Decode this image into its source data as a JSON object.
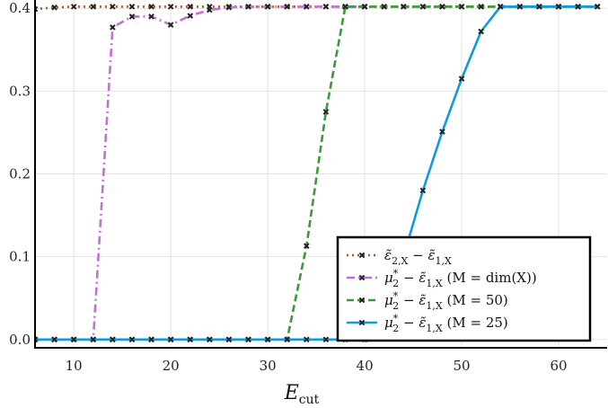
{
  "chart_data": {
    "type": "line",
    "title": "",
    "xlabel": "E",
    "xlabel_sub": "cut",
    "ylabel": "",
    "xlim": [
      6,
      65
    ],
    "ylim": [
      -0.01,
      0.41
    ],
    "xticks": [
      10,
      20,
      30,
      40,
      50,
      60
    ],
    "xtick_labels": [
      "10",
      "20",
      "30",
      "40",
      "50",
      "60"
    ],
    "yticks": [
      0.0,
      0.1,
      0.2,
      0.3,
      0.4
    ],
    "ytick_labels": [
      "0.0",
      "0.1",
      "0.2",
      "0.3",
      "0.4"
    ],
    "grid": true,
    "legend_position": "bottom-right",
    "series": [
      {
        "name": "ε̃2,X − ε̃1,X",
        "legend": {
          "main": "ε̃",
          "s1": "2,X",
          "mid": " − ε̃",
          "s2": "1,X",
          "tail": ""
        },
        "color": "#a05a2c",
        "style": "dotted",
        "x": [
          6,
          8,
          10,
          12,
          14,
          16,
          18,
          20,
          22,
          24,
          26,
          28,
          30,
          32,
          34,
          36,
          38,
          40,
          42,
          44,
          46,
          48,
          50,
          52,
          54,
          56,
          58,
          60,
          62,
          64
        ],
        "y": [
          0.399,
          0.401,
          0.402,
          0.402,
          0.402,
          0.402,
          0.402,
          0.402,
          0.402,
          0.402,
          0.402,
          0.402,
          0.402,
          0.402,
          0.402,
          0.402,
          0.402,
          0.402,
          0.402,
          0.402,
          0.402,
          0.402,
          0.402,
          0.402,
          0.402,
          0.402,
          0.402,
          0.402,
          0.402,
          0.402
        ]
      },
      {
        "name": "μ2* − ε̃1,X (M = dim(X))",
        "legend": {
          "main": "μ",
          "sup": "*",
          "s1": "2",
          "mid": " − ε̃",
          "s2": "1,X",
          "tail": "  (M = dim(X))"
        },
        "color": "#c271d2",
        "style": "dashdot",
        "x": [
          6,
          8,
          10,
          12,
          14,
          16,
          18,
          20,
          22,
          24,
          26,
          28,
          30,
          32,
          34,
          36,
          38,
          40
        ],
        "y": [
          0.0,
          0.0,
          0.0,
          0.0,
          0.377,
          0.39,
          0.39,
          0.38,
          0.391,
          0.398,
          0.401,
          0.402,
          0.402,
          0.402,
          0.402,
          0.402,
          0.402,
          0.402
        ]
      },
      {
        "name": "μ2* − ε̃1,X (M = 50)",
        "legend": {
          "main": "μ",
          "sup": "*",
          "s1": "2",
          "mid": " − ε̃",
          "s2": "1,X",
          "tail": "  (M = 50)"
        },
        "color": "#3a9a3a",
        "style": "dashed",
        "x": [
          6,
          8,
          10,
          12,
          14,
          16,
          18,
          20,
          22,
          24,
          26,
          28,
          30,
          32,
          34,
          36,
          38,
          40,
          42,
          44,
          46,
          48,
          50,
          52,
          54,
          56,
          58,
          60,
          62,
          64
        ],
        "y": [
          0.0,
          0.0,
          0.0,
          0.0,
          0.0,
          0.0,
          0.0,
          0.0,
          0.0,
          0.0,
          0.0,
          0.0,
          0.0,
          0.0,
          0.113,
          0.275,
          0.402,
          0.402,
          0.402,
          0.402,
          0.402,
          0.402,
          0.402,
          0.402,
          0.402,
          0.402,
          0.402,
          0.402,
          0.402,
          0.402
        ]
      },
      {
        "name": "μ2* − ε̃1,X (M = 25)",
        "legend": {
          "main": "μ",
          "sup": "*",
          "s1": "2",
          "mid": " − ε̃",
          "s2": "1,X",
          "tail": "  (M = 25)"
        },
        "color": "#0f9ae0",
        "style": "solid",
        "x": [
          6,
          8,
          10,
          12,
          14,
          16,
          18,
          20,
          22,
          24,
          26,
          28,
          30,
          32,
          34,
          36,
          38,
          40,
          42,
          44,
          46,
          48,
          50,
          52,
          54,
          56,
          58,
          60,
          62,
          64
        ],
        "y": [
          0.0,
          0.0,
          0.0,
          0.0,
          0.0,
          0.0,
          0.0,
          0.0,
          0.0,
          0.0,
          0.0,
          0.0,
          0.0,
          0.0,
          0.0,
          0.0,
          0.0,
          0.0,
          0.03,
          0.1,
          0.18,
          0.251,
          0.315,
          0.372,
          0.402,
          0.402,
          0.402,
          0.402,
          0.402,
          0.402
        ]
      }
    ]
  }
}
